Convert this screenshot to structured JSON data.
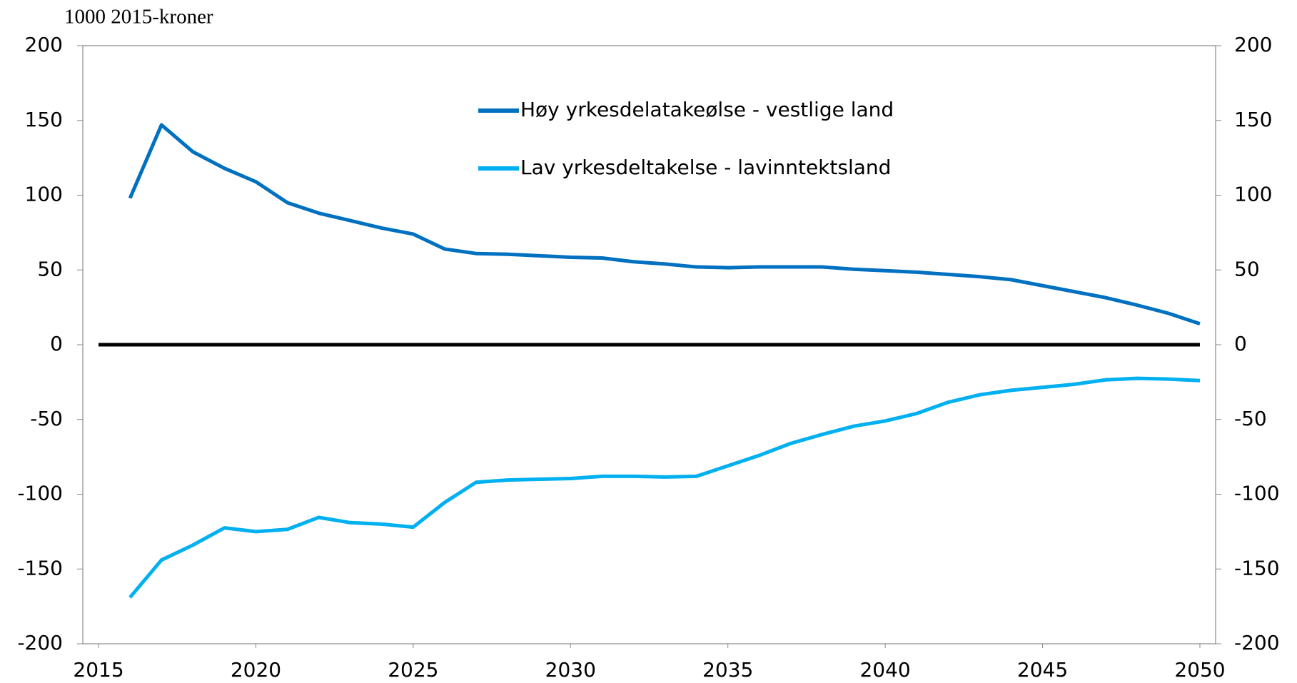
{
  "chart_data": {
    "type": "line",
    "title": "1000 2015-kroner",
    "x": [
      2015,
      2016,
      2017,
      2018,
      2019,
      2020,
      2021,
      2022,
      2023,
      2024,
      2025,
      2026,
      2027,
      2028,
      2029,
      2030,
      2031,
      2032,
      2033,
      2034,
      2035,
      2036,
      2037,
      2038,
      2039,
      2040,
      2041,
      2042,
      2043,
      2044,
      2045,
      2046,
      2047,
      2048,
      2049,
      2050
    ],
    "series": [
      {
        "name": "Høy yrkesdelatakeølse - vestlige land",
        "color": "#0070c0",
        "values": [
          null,
          98,
          147,
          129,
          118,
          109,
          95,
          88,
          83,
          78,
          74,
          64,
          61,
          60.5,
          59.5,
          58.5,
          58,
          55.5,
          54,
          52,
          51.5,
          52,
          52,
          52,
          50.5,
          49.5,
          48.5,
          47,
          45.5,
          43.5,
          39.5,
          35.5,
          31.5,
          26.5,
          21,
          14
        ]
      },
      {
        "name": "Lav yrkesdeltakelse - lavinntektsland",
        "color": "#00b0f0",
        "values": [
          null,
          -169,
          -144,
          -134,
          -122.5,
          -125,
          -123.5,
          -115.5,
          -119,
          -120,
          -122,
          -105.5,
          -92,
          -90.5,
          -90,
          -89.5,
          -88,
          -88,
          -88.5,
          -88,
          -81,
          -74,
          -66,
          -60,
          -54.5,
          -51,
          -46,
          -38.5,
          -33.5,
          -30.5,
          -28.5,
          -26.5,
          -23.5,
          -22.5,
          -23,
          -24
        ]
      },
      {
        "color": "#000000",
        "values": [
          0,
          0,
          0,
          0,
          0,
          0,
          0,
          0,
          0,
          0,
          0,
          0,
          0,
          0,
          0,
          0,
          0,
          0,
          0,
          0,
          0,
          0,
          0,
          0,
          0,
          0,
          0,
          0,
          0,
          0,
          0,
          0,
          0,
          0,
          0,
          0
        ]
      }
    ],
    "xlim": [
      2014.5,
      2050.5
    ],
    "xticks": [
      2015,
      2020,
      2025,
      2030,
      2035,
      2040,
      2045,
      2050
    ],
    "ylim": [
      -200,
      200
    ],
    "yticks": [
      -200,
      -150,
      -100,
      -50,
      0,
      50,
      100,
      150,
      200
    ],
    "y2lim": [
      -200,
      200
    ],
    "y2ticks": [
      -200,
      -150,
      -100,
      -50,
      0,
      50,
      100,
      150,
      200
    ],
    "legend": "top"
  }
}
